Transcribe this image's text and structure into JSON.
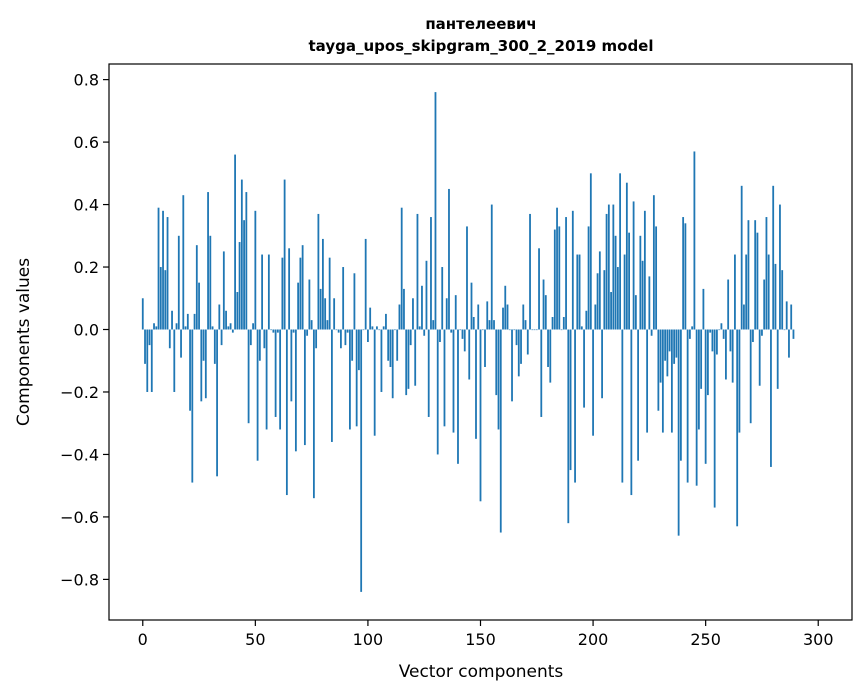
{
  "chart_data": {
    "type": "bar",
    "title_line1": "пантелеевич",
    "title_line2": "tayga_upos_skipgram_300_2_2019 model",
    "xlabel": "Vector components",
    "ylabel": "Components values",
    "xlim": [
      -15,
      315
    ],
    "ylim": [
      -0.93,
      0.85
    ],
    "xticks": [
      0,
      50,
      100,
      150,
      200,
      250,
      300
    ],
    "xtick_labels": [
      "0",
      "50",
      "100",
      "150",
      "200",
      "250",
      "300"
    ],
    "yticks": [
      -0.8,
      -0.6,
      -0.4,
      -0.2,
      0.0,
      0.2,
      0.4,
      0.6,
      0.8
    ],
    "ytick_labels": [
      "−0.8",
      "−0.6",
      "−0.4",
      "−0.2",
      "0.0",
      "0.2",
      "0.4",
      "0.6",
      "0.8"
    ],
    "bar_color": "#1f77b4",
    "values": [
      0.1,
      -0.11,
      -0.2,
      -0.05,
      -0.2,
      0.02,
      0.01,
      0.39,
      0.2,
      0.38,
      0.19,
      0.36,
      -0.06,
      0.06,
      -0.2,
      0.02,
      0.3,
      -0.09,
      0.43,
      0.01,
      0.05,
      -0.26,
      -0.49,
      0.05,
      0.27,
      0.15,
      -0.23,
      -0.1,
      -0.22,
      0.44,
      0.3,
      0.01,
      -0.11,
      -0.47,
      0.08,
      -0.05,
      0.25,
      0.06,
      0.01,
      0.02,
      -0.01,
      0.56,
      0.12,
      0.28,
      0.48,
      0.35,
      0.44,
      -0.3,
      -0.05,
      0.02,
      0.38,
      -0.42,
      -0.1,
      0.24,
      -0.06,
      -0.32,
      0.24,
      0.0,
      -0.01,
      -0.28,
      -0.01,
      -0.32,
      0.23,
      0.48,
      -0.53,
      0.26,
      -0.23,
      -0.01,
      -0.39,
      0.15,
      0.23,
      0.27,
      -0.37,
      -0.02,
      0.16,
      0.03,
      -0.54,
      -0.06,
      0.37,
      0.13,
      0.29,
      0.1,
      0.03,
      0.23,
      -0.36,
      0.1,
      0.0,
      -0.01,
      -0.06,
      0.2,
      -0.05,
      -0.01,
      -0.32,
      -0.1,
      0.18,
      -0.31,
      -0.13,
      -0.84,
      0.0,
      0.29,
      -0.04,
      0.07,
      0.01,
      -0.34,
      0.01,
      0.0,
      -0.2,
      0.01,
      0.05,
      -0.1,
      -0.12,
      -0.22,
      0.0,
      -0.1,
      0.08,
      0.39,
      0.13,
      -0.21,
      -0.19,
      -0.05,
      0.1,
      -0.18,
      0.37,
      0.01,
      0.14,
      -0.02,
      0.22,
      -0.28,
      0.36,
      0.03,
      0.76,
      -0.4,
      -0.04,
      0.2,
      -0.31,
      0.1,
      0.45,
      -0.01,
      -0.33,
      0.11,
      -0.43,
      0.0,
      -0.03,
      -0.07,
      0.33,
      -0.16,
      0.15,
      0.04,
      -0.35,
      0.08,
      -0.55,
      0.0,
      -0.12,
      0.09,
      0.03,
      0.4,
      0.03,
      -0.21,
      -0.32,
      -0.65,
      0.07,
      0.14,
      0.08,
      0.0,
      -0.23,
      0.0,
      -0.05,
      -0.15,
      -0.11,
      0.08,
      0.03,
      -0.08,
      0.37,
      0.0,
      0.0,
      0.0,
      0.26,
      -0.28,
      0.16,
      0.11,
      -0.12,
      -0.17,
      0.04,
      0.32,
      0.39,
      0.33,
      0.0,
      0.04,
      0.36,
      -0.62,
      -0.45,
      0.38,
      -0.49,
      0.24,
      0.24,
      0.01,
      -0.25,
      0.06,
      0.33,
      0.5,
      -0.34,
      0.08,
      0.18,
      0.25,
      -0.22,
      0.19,
      0.37,
      0.4,
      0.12,
      0.4,
      0.3,
      0.2,
      0.5,
      -0.49,
      0.24,
      0.47,
      0.31,
      -0.53,
      0.41,
      0.11,
      -0.42,
      0.3,
      0.22,
      0.38,
      -0.33,
      0.17,
      -0.02,
      0.43,
      0.33,
      -0.26,
      -0.17,
      -0.33,
      -0.1,
      -0.15,
      -0.07,
      -0.33,
      -0.11,
      -0.09,
      -0.66,
      -0.42,
      0.36,
      0.34,
      -0.49,
      -0.03,
      0.01,
      0.57,
      -0.5,
      -0.32,
      -0.19,
      0.13,
      -0.43,
      -0.21,
      -0.01,
      -0.07,
      -0.57,
      -0.08,
      0.0,
      0.02,
      -0.03,
      -0.16,
      0.16,
      -0.07,
      -0.17,
      0.24,
      -0.63,
      -0.33,
      0.46,
      0.08,
      0.24,
      0.35,
      -0.3,
      -0.04,
      0.35,
      0.31,
      -0.18,
      -0.02,
      0.16,
      0.36,
      0.24,
      -0.44,
      0.46,
      0.21,
      -0.19,
      0.4,
      0.19,
      0.0,
      0.09,
      -0.09,
      0.08,
      -0.03
    ]
  }
}
